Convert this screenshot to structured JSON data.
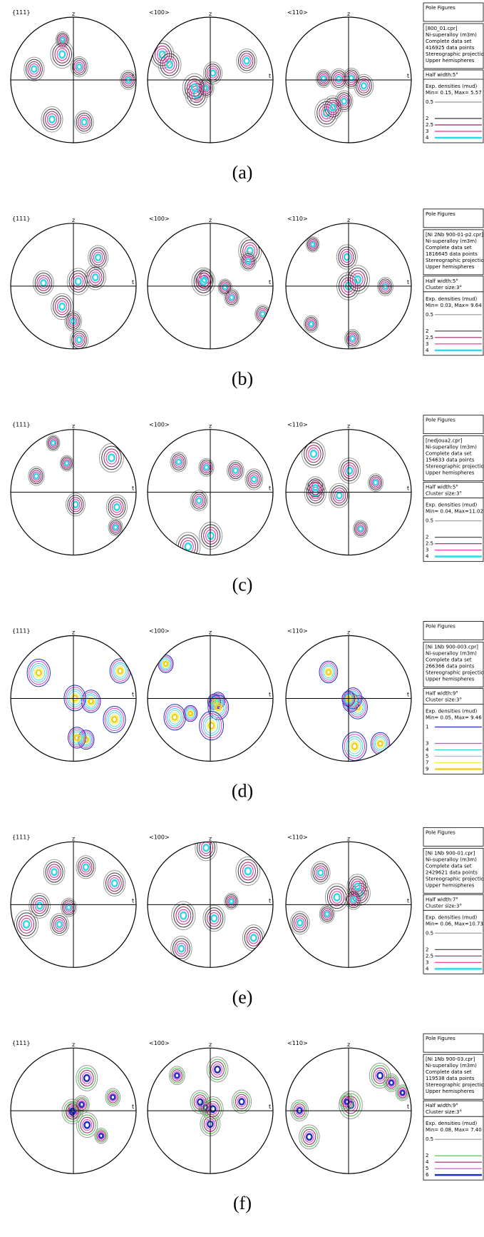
{
  "axis_labels": {
    "top": "z",
    "right": "t"
  },
  "figure_labels": [
    "{111}",
    "<100>",
    "<110>"
  ],
  "panels": [
    {
      "caption": "(a)",
      "legend": {
        "title": "Pole Figures",
        "info": [
          "[800_01.cpr]",
          "Ni-superalloy (m3m)",
          "Complete data set",
          "416925 data points",
          "Stereographic projection",
          "Upper hemispheres"
        ],
        "settings": [
          "Half width:5°"
        ],
        "densities_title": "Exp. densities (mud)",
        "range": "Min= 0.15, Max= 5.57",
        "levels": [
          {
            "label": "0.5",
            "color": "#9a9a9a"
          },
          {
            "label": "2",
            "color": "#3a3a3a"
          },
          {
            "label": "2.5",
            "color": "#a0206a"
          },
          {
            "label": "3",
            "color": "#e0309a"
          },
          {
            "label": "4",
            "color": "#30d8e8"
          }
        ]
      }
    },
    {
      "caption": "(b)",
      "legend": {
        "title": "Pole Figures",
        "info": [
          "[Ni 2Nb 900-01-p2.cpr]",
          "Ni-superalloy (m3m)",
          "Complete data set",
          "1816645 data points",
          "Stereographic projection",
          "Upper hemispheres"
        ],
        "settings": [
          "Half width:5°",
          "Cluster size:3°"
        ],
        "densities_title": "Exp. densities (mud)",
        "range": "Min= 0.03, Max= 9.64",
        "levels": [
          {
            "label": "0.5",
            "color": "#9a9a9a"
          },
          {
            "label": "2",
            "color": "#3a3a3a"
          },
          {
            "label": "2.5",
            "color": "#a0206a"
          },
          {
            "label": "3",
            "color": "#e0309a"
          },
          {
            "label": "4",
            "color": "#30d8e8"
          }
        ]
      }
    },
    {
      "caption": "(c)",
      "legend": {
        "title": "Pole Figures",
        "info": [
          "[nedjoua2.cpr]",
          "Ni-superalloy (m3m)",
          "Complete data set",
          "154633 data points",
          "Stereographic projection",
          "Upper hemispheres"
        ],
        "settings": [
          "Half width:5°",
          "Cluster size:3°"
        ],
        "densities_title": "Exp. densities (mud)",
        "range": "Min= 0.04, Max=11.02",
        "levels": [
          {
            "label": "0.5",
            "color": "#9a9a9a"
          },
          {
            "label": "2",
            "color": "#3a3a3a"
          },
          {
            "label": "2.5",
            "color": "#a0206a"
          },
          {
            "label": "3",
            "color": "#e0309a"
          },
          {
            "label": "4",
            "color": "#30d8e8"
          }
        ]
      }
    },
    {
      "caption": "(d)",
      "legend": {
        "title": "Pole Figures",
        "info": [
          "[Ni 1Nb 900-003.cpr]",
          "Ni-superalloy (m3m)",
          "Complete data set",
          "266366 data points",
          "Stereographic projection",
          "Upper hemispheres"
        ],
        "settings": [
          "Half width:9°",
          "Cluster size:3°"
        ],
        "densities_title": "Exp. densities (mud)",
        "range": "Min= 0.05, Max= 9.46",
        "levels": [
          {
            "label": "1",
            "color": "#2030c0"
          },
          {
            "label": "3",
            "color": "#e040d0"
          },
          {
            "label": "4",
            "color": "#40c8e0"
          },
          {
            "label": "5",
            "color": "#60d8f0"
          },
          {
            "label": "7",
            "color": "#f0f040"
          },
          {
            "label": "9",
            "color": "#f0d020"
          }
        ]
      }
    },
    {
      "caption": "(e)",
      "legend": {
        "title": "Pole Figures",
        "info": [
          "[Ni 1Nb 900-01.cpr]",
          "Ni-superalloy (m3m)",
          "Complete data set",
          "2429621 data points",
          "Stereographic projection",
          "Upper hemispheres"
        ],
        "settings": [
          "Half width:7°",
          "Cluster size:3°"
        ],
        "densities_title": "Exp. densities (mud)",
        "range": "Min= 0.06, Max=10.73",
        "levels": [
          {
            "label": "0.5",
            "color": "#9a9a9a"
          },
          {
            "label": "2",
            "color": "#3a3a3a"
          },
          {
            "label": "2.5",
            "color": "#a0206a"
          },
          {
            "label": "3",
            "color": "#e0309a"
          },
          {
            "label": "4",
            "color": "#30d8e8"
          }
        ]
      }
    },
    {
      "caption": "(f)",
      "legend": {
        "title": "Pole Figures",
        "info": [
          "[Ni 1Nb 900-03.cpr]",
          "Ni-superalloy (m3m)",
          "Complete data set",
          "119538 data points",
          "Stereographic projection",
          "Upper hemispheres"
        ],
        "settings": [
          "Half width:9°",
          "Cluster size:3°"
        ],
        "densities_title": "Exp. densities (mud)",
        "range": "Min= 0.08, Max= 7.40",
        "levels": [
          {
            "label": "0.5",
            "color": "#9a9a9a"
          },
          {
            "label": "2",
            "color": "#40c040"
          },
          {
            "label": "4",
            "color": "#a0206a"
          },
          {
            "label": "5",
            "color": "#e040d0"
          },
          {
            "label": "6",
            "color": "#2030c0"
          }
        ]
      }
    }
  ]
}
